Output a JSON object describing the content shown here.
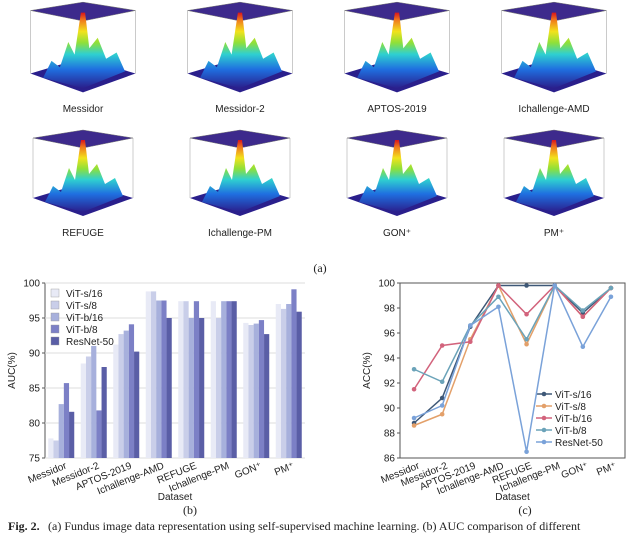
{
  "panel_a": {
    "labels": [
      "Messidor",
      "Messidor-2",
      "APTOS-2019",
      "Ichallenge-AMD",
      "REFUGE",
      "Ichallenge-PM",
      "GON⁺",
      "PM⁺"
    ],
    "tag": "(a)"
  },
  "chart_data": [
    {
      "type": "bar",
      "panel_label": "(b)",
      "x_label": "Dataset",
      "y_label": "AUC(%)",
      "categories": [
        "Messidor",
        "Messidor-2",
        "APTOS-2019",
        "Ichallenge-AMD",
        "REFUGE",
        "Ichallenge-PM",
        "GON⁺",
        "PM⁺"
      ],
      "series": [
        {
          "name": "ViT-s/16",
          "color": "#e8eaf6",
          "values": [
            77.8,
            88.5,
            91.2,
            98.8,
            97.4,
            97.4,
            94.3,
            97.0
          ]
        },
        {
          "name": "ViT-s/8",
          "color": "#c9cee9",
          "values": [
            77.5,
            89.5,
            92.7,
            98.8,
            97.4,
            95.0,
            94.0,
            96.3
          ]
        },
        {
          "name": "ViT-b/16",
          "color": "#a7b0dc",
          "values": [
            82.7,
            91.0,
            93.2,
            97.5,
            95.0,
            97.4,
            94.2,
            97.0
          ]
        },
        {
          "name": "ViT-b/8",
          "color": "#7c80c6",
          "values": [
            85.7,
            81.8,
            94.1,
            97.5,
            97.4,
            97.4,
            94.7,
            99.1
          ]
        },
        {
          "name": "ResNet-50",
          "color": "#5a5ea6",
          "values": [
            81.6,
            88.0,
            90.2,
            95.0,
            95.0,
            97.4,
            92.7,
            95.9
          ]
        }
      ],
      "ylim": [
        75,
        100
      ],
      "yticks": [
        75,
        80,
        85,
        90,
        95,
        100
      ],
      "grid": true,
      "legend": "top-left"
    },
    {
      "type": "line",
      "panel_label": "(c)",
      "x_label": "Dataset",
      "y_label": "ACC(%)",
      "categories": [
        "Messidor",
        "Messidor-2",
        "APTOS-2019",
        "Ichallenge-AMD",
        "REFUGE",
        "Ichallenge-PM",
        "GON⁺",
        "PM⁺"
      ],
      "series": [
        {
          "name": "ViT-s/16",
          "color": "#3e5877",
          "values": [
            88.8,
            90.8,
            96.5,
            99.8,
            99.8,
            99.8,
            97.6,
            99.6
          ]
        },
        {
          "name": "ViT-s/8",
          "color": "#e3a06a",
          "values": [
            88.6,
            89.5,
            95.5,
            99.8,
            95.1,
            99.8,
            97.3,
            99.6
          ]
        },
        {
          "name": "ViT-b/16",
          "color": "#d2637c",
          "values": [
            91.5,
            95.0,
            95.3,
            99.8,
            97.5,
            99.8,
            97.3,
            99.6
          ]
        },
        {
          "name": "ViT-b/8",
          "color": "#6ba3b9",
          "values": [
            93.1,
            92.1,
            96.6,
            98.9,
            95.5,
            99.8,
            97.8,
            99.6
          ]
        },
        {
          "name": "ResNet-50",
          "color": "#7aa2d9",
          "values": [
            89.2,
            90.2,
            96.6,
            98.1,
            86.5,
            99.8,
            94.9,
            98.9
          ]
        }
      ],
      "ylim": [
        86,
        100
      ],
      "yticks": [
        86,
        88,
        90,
        92,
        94,
        96,
        98,
        100
      ],
      "grid": false,
      "legend": "bottom-right"
    }
  ],
  "caption": {
    "label": "Fig. 2.",
    "text": "(a) Fundus image data representation using self-supervised machine learning. (b) AUC comparison of different"
  }
}
